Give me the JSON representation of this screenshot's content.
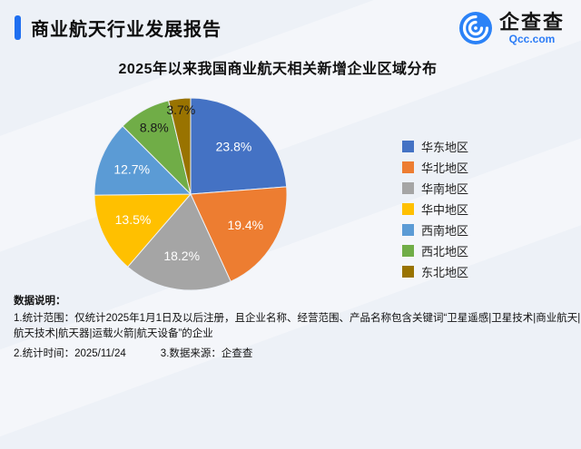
{
  "header": {
    "title": "商业航天行业发展报告",
    "logo": {
      "name": "企查查",
      "domain": "Qcc.com"
    }
  },
  "chart_data": {
    "type": "pie",
    "title": "2025年以来我国商业航天相关新增企业区域分布",
    "unit": "%",
    "legend_position": "right",
    "series": [
      {
        "label": "华东地区",
        "value": 23.8,
        "color": "#4472c4",
        "label_color": "#ffffff",
        "label_radius": 0.66
      },
      {
        "label": "华北地区",
        "value": 19.4,
        "color": "#ed7d31",
        "label_color": "#ffffff",
        "label_radius": 0.66
      },
      {
        "label": "华南地区",
        "value": 18.2,
        "color": "#a5a5a5",
        "label_color": "#ffffff",
        "label_radius": 0.66
      },
      {
        "label": "华中地区",
        "value": 13.5,
        "color": "#ffc000",
        "label_color": "#ffffff",
        "label_radius": 0.66
      },
      {
        "label": "西南地区",
        "value": 12.7,
        "color": "#5b9bd5",
        "label_color": "#ffffff",
        "label_radius": 0.66
      },
      {
        "label": "西北地区",
        "value": 8.8,
        "color": "#70ad47",
        "label_color": "#1a1a1a",
        "label_radius": 0.78
      },
      {
        "label": "东北地区",
        "value": 3.7,
        "color": "#997300",
        "label_color": "#1a1a1a",
        "label_radius": 0.87
      }
    ]
  },
  "notes": {
    "heading": "数据说明：",
    "line1": "1.统计范围：仅统计2025年1月1日及以后注册，且企业名称、经营范围、产品名称包含关键词“卫星遥感|卫星技术|商业航天|",
    "line2": "航天技术|航天器|运载火箭|航天设备”的企业",
    "time": "2.统计时间：2025/11/24",
    "source": "3.数据来源：企查查"
  }
}
